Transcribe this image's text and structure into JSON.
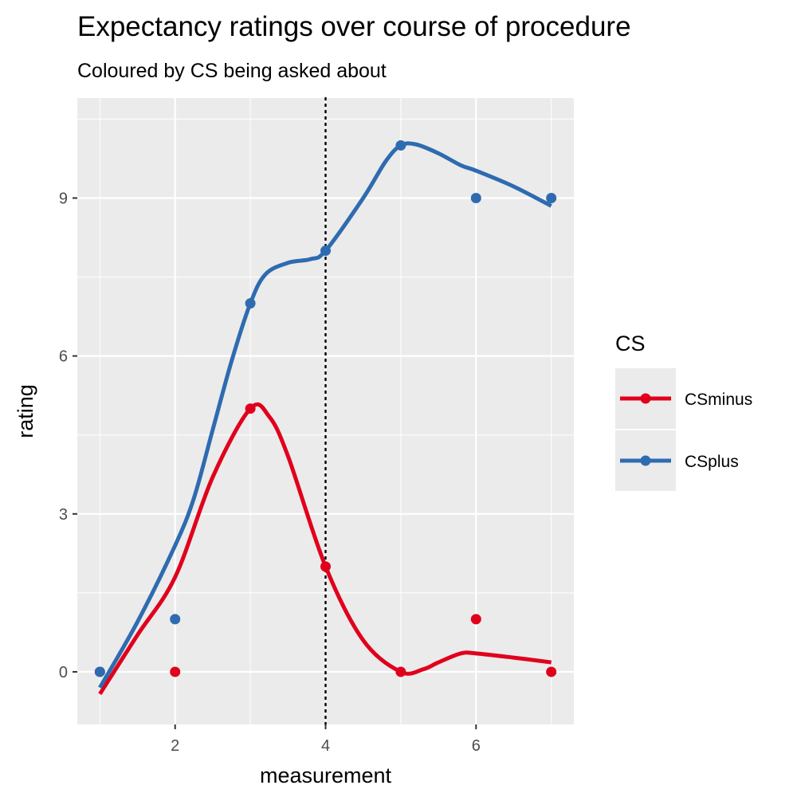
{
  "chart_data": {
    "type": "line",
    "title": "Expectancy ratings over course of procedure",
    "subtitle": "Coloured by CS being asked about",
    "xlabel": "measurement",
    "ylabel": "rating",
    "xlim": [
      0.7,
      7.3
    ],
    "ylim": [
      -1.0,
      10.9
    ],
    "x_ticks": [
      2,
      4,
      6
    ],
    "y_ticks": [
      0,
      3,
      6,
      9
    ],
    "grid": true,
    "reference_line": {
      "x": 4,
      "style": "dotted",
      "color": "#000000"
    },
    "legend": {
      "title": "CS",
      "position": "right"
    },
    "x": [
      1,
      2,
      3,
      4,
      5,
      6,
      7
    ],
    "series": [
      {
        "name": "CSminus",
        "color": "#e0001b",
        "points": [
          0,
          0,
          5,
          2,
          0,
          1,
          0
        ],
        "smooth": [
          [
            1.0,
            -0.42
          ],
          [
            1.5,
            0.7
          ],
          [
            2.0,
            1.8
          ],
          [
            2.5,
            3.7
          ],
          [
            3.0,
            5.0
          ],
          [
            3.25,
            4.85
          ],
          [
            3.5,
            4.1
          ],
          [
            4.0,
            2.0
          ],
          [
            4.5,
            0.6
          ],
          [
            5.0,
            0.0
          ],
          [
            5.3,
            0.05
          ],
          [
            5.5,
            0.18
          ],
          [
            5.8,
            0.35
          ],
          [
            6.0,
            0.35
          ],
          [
            6.5,
            0.27
          ],
          [
            7.0,
            0.18
          ]
        ]
      },
      {
        "name": "CSplus",
        "color": "#2e6bb0",
        "points": [
          0,
          1,
          7,
          8,
          10,
          9,
          9
        ],
        "smooth": [
          [
            1.0,
            -0.3
          ],
          [
            1.5,
            0.95
          ],
          [
            2.0,
            2.4
          ],
          [
            2.25,
            3.3
          ],
          [
            2.5,
            4.6
          ],
          [
            2.75,
            5.9
          ],
          [
            3.0,
            7.0
          ],
          [
            3.2,
            7.55
          ],
          [
            3.5,
            7.77
          ],
          [
            3.8,
            7.84
          ],
          [
            4.0,
            8.0
          ],
          [
            4.5,
            9.0
          ],
          [
            4.8,
            9.7
          ],
          [
            5.0,
            10.0
          ],
          [
            5.2,
            10.02
          ],
          [
            5.5,
            9.85
          ],
          [
            5.8,
            9.62
          ],
          [
            6.0,
            9.52
          ],
          [
            6.5,
            9.22
          ],
          [
            7.0,
            8.85
          ]
        ]
      }
    ]
  }
}
